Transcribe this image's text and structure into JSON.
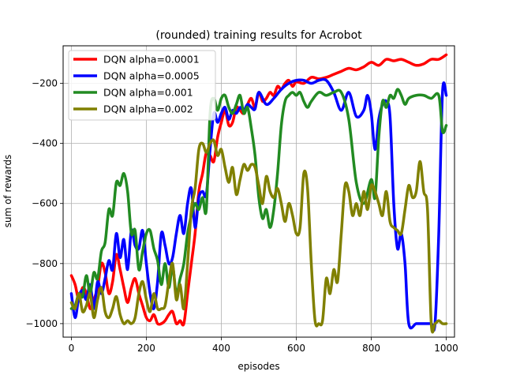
{
  "chart_data": {
    "type": "line",
    "title": "(rounded) training results for Acrobot",
    "xlabel": "episodes",
    "ylabel": "sum of rewards",
    "xlim": [
      -22,
      1022
    ],
    "ylim": [
      -1045,
      -75
    ],
    "xticks": [
      0,
      200,
      400,
      600,
      800,
      1000
    ],
    "yticks": [
      -1000,
      -800,
      -600,
      -400,
      -200
    ],
    "grid": true,
    "legend_position": "top-left",
    "series": [
      {
        "name": "DQN alpha=0.0001",
        "color": "#ff0000",
        "x": [
          0,
          10,
          20,
          30,
          40,
          50,
          60,
          70,
          80,
          90,
          100,
          110,
          120,
          130,
          140,
          150,
          160,
          170,
          180,
          190,
          200,
          210,
          220,
          230,
          240,
          250,
          260,
          270,
          280,
          290,
          300,
          310,
          320,
          330,
          340,
          350,
          360,
          370,
          380,
          390,
          400,
          410,
          420,
          430,
          440,
          450,
          460,
          470,
          480,
          490,
          500,
          510,
          520,
          530,
          540,
          550,
          560,
          570,
          580,
          590,
          600,
          620,
          640,
          660,
          680,
          700,
          720,
          740,
          760,
          780,
          800,
          820,
          840,
          860,
          880,
          900,
          920,
          940,
          960,
          980,
          1000
        ],
        "y": [
          -840,
          -870,
          -920,
          -880,
          -900,
          -950,
          -920,
          -880,
          -800,
          -830,
          -900,
          -860,
          -770,
          -820,
          -880,
          -930,
          -880,
          -850,
          -900,
          -940,
          -980,
          -990,
          -970,
          -1000,
          -1000,
          -990,
          -970,
          -960,
          -1000,
          -990,
          -1000,
          -900,
          -800,
          -700,
          -560,
          -500,
          -430,
          -440,
          -460,
          -380,
          -330,
          -290,
          -340,
          -330,
          -280,
          -290,
          -300,
          -270,
          -250,
          -280,
          -230,
          -260,
          -250,
          -230,
          -240,
          -210,
          -220,
          -200,
          -190,
          -210,
          -195,
          -200,
          -180,
          -185,
          -180,
          -170,
          -160,
          -150,
          -155,
          -145,
          -130,
          -140,
          -120,
          -125,
          -120,
          -130,
          -140,
          -135,
          -120,
          -120,
          -105
        ]
      },
      {
        "name": "DQN alpha=0.0005",
        "color": "#0000ff",
        "x": [
          0,
          10,
          20,
          30,
          40,
          50,
          60,
          70,
          80,
          90,
          100,
          110,
          120,
          130,
          140,
          150,
          160,
          170,
          180,
          190,
          200,
          210,
          220,
          230,
          240,
          250,
          260,
          270,
          280,
          290,
          300,
          310,
          320,
          330,
          340,
          350,
          360,
          370,
          380,
          390,
          400,
          410,
          420,
          430,
          440,
          450,
          460,
          470,
          480,
          490,
          500,
          520,
          540,
          560,
          580,
          600,
          620,
          640,
          660,
          680,
          700,
          720,
          740,
          760,
          780,
          790,
          800,
          810,
          820,
          830,
          840,
          850,
          860,
          870,
          880,
          890,
          900,
          920,
          940,
          960,
          970,
          980,
          990,
          1000
        ],
        "y": [
          -900,
          -980,
          -910,
          -890,
          -920,
          -870,
          -950,
          -860,
          -900,
          -850,
          -790,
          -820,
          -700,
          -780,
          -720,
          -820,
          -690,
          -740,
          -750,
          -690,
          -800,
          -900,
          -950,
          -860,
          -700,
          -740,
          -800,
          -780,
          -700,
          -640,
          -700,
          -600,
          -550,
          -680,
          -580,
          -560,
          -570,
          -420,
          -300,
          -330,
          -300,
          -280,
          -320,
          -290,
          -300,
          -280,
          -290,
          -270,
          -280,
          -285,
          -230,
          -270,
          -250,
          -220,
          -200,
          -190,
          -190,
          -200,
          -190,
          -190,
          -230,
          -290,
          -230,
          -310,
          -290,
          -240,
          -300,
          -420,
          -320,
          -270,
          -260,
          -310,
          -600,
          -750,
          -700,
          -800,
          -1000,
          -1000,
          -1000,
          -1000,
          -1000,
          -700,
          -230,
          -240
        ]
      },
      {
        "name": "DQN alpha=0.001",
        "color": "#228b22",
        "x": [
          0,
          10,
          20,
          30,
          40,
          50,
          60,
          70,
          80,
          90,
          100,
          110,
          120,
          130,
          140,
          150,
          160,
          170,
          180,
          190,
          200,
          210,
          220,
          230,
          240,
          250,
          260,
          270,
          280,
          290,
          300,
          310,
          320,
          330,
          340,
          350,
          360,
          370,
          380,
          390,
          400,
          410,
          420,
          430,
          440,
          450,
          460,
          470,
          480,
          490,
          500,
          510,
          520,
          530,
          540,
          550,
          560,
          570,
          580,
          590,
          600,
          610,
          620,
          630,
          640,
          660,
          680,
          700,
          720,
          740,
          760,
          780,
          800,
          810,
          820,
          830,
          840,
          850,
          860,
          870,
          880,
          890,
          900,
          920,
          940,
          960,
          980,
          990,
          1000
        ],
        "y": [
          -950,
          -940,
          -900,
          -910,
          -840,
          -900,
          -830,
          -850,
          -760,
          -730,
          -620,
          -640,
          -530,
          -540,
          -500,
          -560,
          -700,
          -690,
          -820,
          -760,
          -700,
          -690,
          -750,
          -790,
          -870,
          -800,
          -880,
          -810,
          -900,
          -850,
          -800,
          -700,
          -640,
          -600,
          -620,
          -580,
          -620,
          -300,
          -250,
          -290,
          -250,
          -240,
          -280,
          -300,
          -270,
          -240,
          -300,
          -280,
          -350,
          -440,
          -580,
          -650,
          -620,
          -680,
          -620,
          -500,
          -340,
          -260,
          -240,
          -230,
          -240,
          -230,
          -260,
          -280,
          -260,
          -230,
          -240,
          -230,
          -230,
          -320,
          -530,
          -600,
          -520,
          -580,
          -380,
          -260,
          -280,
          -240,
          -250,
          -220,
          -240,
          -270,
          -250,
          -240,
          -240,
          -250,
          -240,
          -360,
          -340
        ]
      },
      {
        "name": "DQN alpha=0.002",
        "color": "#808000",
        "x": [
          0,
          10,
          20,
          30,
          40,
          50,
          60,
          70,
          80,
          90,
          100,
          110,
          120,
          130,
          140,
          150,
          160,
          170,
          180,
          190,
          200,
          210,
          220,
          230,
          240,
          250,
          260,
          270,
          280,
          290,
          300,
          310,
          320,
          330,
          340,
          350,
          360,
          370,
          380,
          390,
          400,
          410,
          420,
          430,
          440,
          450,
          460,
          470,
          480,
          490,
          500,
          510,
          520,
          530,
          540,
          550,
          560,
          570,
          580,
          590,
          600,
          610,
          620,
          630,
          640,
          650,
          660,
          670,
          680,
          690,
          700,
          710,
          720,
          730,
          740,
          750,
          760,
          770,
          780,
          790,
          800,
          810,
          820,
          830,
          840,
          850,
          860,
          870,
          880,
          890,
          900,
          910,
          920,
          930,
          940,
          950,
          960,
          970,
          980,
          990,
          1000
        ],
        "y": [
          -930,
          -950,
          -900,
          -960,
          -940,
          -900,
          -980,
          -920,
          -880,
          -960,
          -980,
          -950,
          -910,
          -970,
          -1000,
          -990,
          -1000,
          -980,
          -900,
          -860,
          -920,
          -960,
          -900,
          -950,
          -950,
          -940,
          -860,
          -800,
          -920,
          -870,
          -950,
          -800,
          -620,
          -550,
          -420,
          -400,
          -430,
          -400,
          -390,
          -440,
          -420,
          -480,
          -530,
          -480,
          -570,
          -520,
          -470,
          -490,
          -470,
          -480,
          -540,
          -600,
          -510,
          -560,
          -580,
          -550,
          -600,
          -660,
          -600,
          -640,
          -700,
          -680,
          -500,
          -550,
          -800,
          -990,
          -1000,
          -990,
          -850,
          -900,
          -820,
          -860,
          -700,
          -540,
          -560,
          -640,
          -600,
          -640,
          -560,
          -620,
          -540,
          -560,
          -600,
          -640,
          -560,
          -660,
          -680,
          -690,
          -700,
          -620,
          -540,
          -580,
          -560,
          -460,
          -560,
          -620,
          -1000,
          -1000,
          -990,
          -1000,
          -1000
        ]
      }
    ]
  }
}
